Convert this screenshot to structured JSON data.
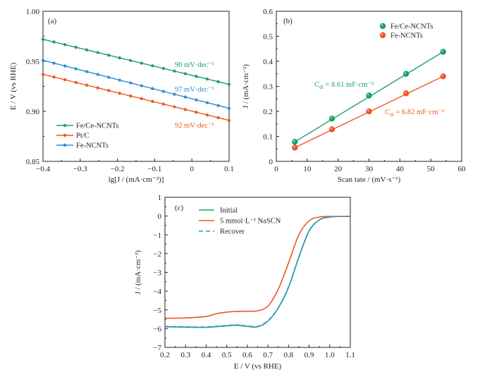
{
  "chart_data": [
    {
      "panel": "(a)",
      "type": "line",
      "xlabel": "lg[J / (mA·cm⁻²)]",
      "ylabel": "E / V (vs RHE)",
      "xlim": [
        -0.4,
        0.1
      ],
      "ylim": [
        0.85,
        1.0
      ],
      "xticks": [
        "−0.4",
        "−0.3",
        "−0.2",
        "−0.1",
        "0",
        "0.1"
      ],
      "yticks": [
        "0.85",
        "0.90",
        "0.95",
        "1.00"
      ],
      "grid": false,
      "legend_position": "bottom-left",
      "series": [
        {
          "name": "Fe/Ce-NCNTs",
          "color": "#1aa06b",
          "marker": "pentagon",
          "x": [
            -0.4,
            0.1
          ],
          "y": [
            0.972,
            0.927
          ],
          "slope_label": "90 mV·dec⁻¹"
        },
        {
          "name": "Pt/C",
          "color": "#ee5524",
          "marker": "pentagon",
          "x": [
            -0.4,
            0.1
          ],
          "y": [
            0.937,
            0.891
          ],
          "slope_label": "92 mV·dec⁻¹"
        },
        {
          "name": "Fe-NCNTs",
          "color": "#2f8fd3",
          "marker": "pentagon",
          "x": [
            -0.4,
            0.1
          ],
          "y": [
            0.951,
            0.903
          ],
          "slope_label": "97 mV·dec⁻¹"
        }
      ]
    },
    {
      "panel": "(b)",
      "type": "scatter",
      "xlabel": "Scan tate / (mV·s⁻¹)",
      "ylabel": "J / (mA·cm⁻²)",
      "xlim": [
        0,
        60
      ],
      "ylim": [
        0,
        0.6
      ],
      "xticks": [
        "0",
        "10",
        "20",
        "30",
        "40",
        "50",
        "60"
      ],
      "yticks": [
        "0",
        "0.1",
        "0.2",
        "0.3",
        "0.4",
        "0.5",
        "0.6"
      ],
      "grid": false,
      "legend_position": "top-right",
      "series": [
        {
          "name": "Fe/Ce-NCNTs",
          "color": "#1aa06b",
          "x": [
            6,
            18,
            30,
            42,
            54
          ],
          "y": [
            0.078,
            0.171,
            0.263,
            0.35,
            0.438
          ],
          "fit_label_prefix": "C",
          "fit_label_sub": "dl",
          "fit_label_value": " = 8.61 mF·cm⁻²"
        },
        {
          "name": "Fe-NCNTs",
          "color": "#ee5524",
          "x": [
            6,
            18,
            30,
            42,
            54
          ],
          "y": [
            0.055,
            0.128,
            0.2,
            0.272,
            0.34
          ],
          "fit_label_prefix": "C",
          "fit_label_sub": "dl",
          "fit_label_value": " = 6.82 mF·cm⁻²"
        }
      ]
    },
    {
      "panel": "(c)",
      "type": "line",
      "xlabel": "E / V (vs RHE)",
      "ylabel": "J / (mA·cm⁻²)",
      "xlim": [
        0.2,
        1.1
      ],
      "ylim": [
        -7,
        1
      ],
      "xticks": [
        "0.2",
        "0.3",
        "0.4",
        "0.5",
        "0.6",
        "0.7",
        "0.8",
        "0.9",
        "1.0",
        "1.1"
      ],
      "yticks": [
        "−7",
        "−6",
        "−5",
        "−4",
        "−3",
        "−2",
        "−1",
        "0",
        "1"
      ],
      "grid": false,
      "legend_position": "top-left",
      "series": [
        {
          "name": "Initial",
          "color": "#1aa06b",
          "dash": "solid",
          "x": [
            0.2,
            0.3,
            0.4,
            0.5,
            0.55,
            0.6,
            0.65,
            0.7,
            0.75,
            0.8,
            0.85,
            0.9,
            0.95,
            1.0,
            1.05,
            1.1
          ],
          "y": [
            -5.9,
            -5.92,
            -5.93,
            -5.85,
            -5.82,
            -5.88,
            -5.9,
            -5.6,
            -4.9,
            -3.8,
            -2.2,
            -0.8,
            -0.2,
            -0.05,
            -0.02,
            -0.02
          ]
        },
        {
          "name": "5 mmol·L⁻¹ NaSCN",
          "color": "#ee5524",
          "dash": "solid",
          "x": [
            0.2,
            0.3,
            0.4,
            0.45,
            0.5,
            0.55,
            0.6,
            0.65,
            0.7,
            0.75,
            0.8,
            0.85,
            0.9,
            0.95,
            1.0,
            1.05,
            1.1
          ],
          "y": [
            -5.45,
            -5.43,
            -5.35,
            -5.2,
            -5.12,
            -5.08,
            -5.07,
            -5.05,
            -4.8,
            -3.9,
            -2.5,
            -1.0,
            -0.25,
            -0.05,
            -0.02,
            -0.02,
            -0.02
          ]
        },
        {
          "name": "Recover",
          "color": "#2f8fd3",
          "dash": "dashed",
          "x": [
            0.2,
            0.3,
            0.4,
            0.5,
            0.55,
            0.6,
            0.65,
            0.7,
            0.75,
            0.8,
            0.85,
            0.9,
            0.95,
            1.0,
            1.05,
            1.1
          ],
          "y": [
            -5.88,
            -5.9,
            -5.91,
            -5.83,
            -5.8,
            -5.86,
            -5.88,
            -5.58,
            -4.88,
            -3.78,
            -2.18,
            -0.78,
            -0.2,
            -0.05,
            -0.02,
            -0.02
          ]
        }
      ]
    }
  ]
}
